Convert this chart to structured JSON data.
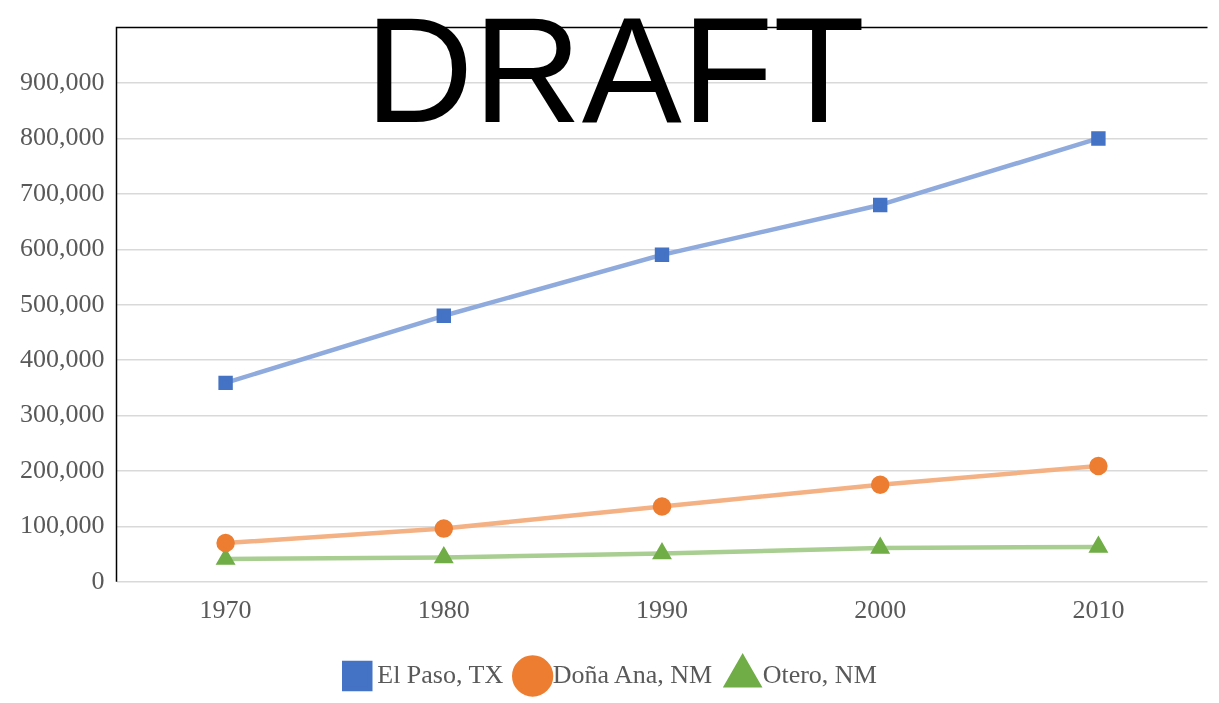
{
  "chart_data": {
    "type": "line",
    "categories": [
      "1970",
      "1980",
      "1990",
      "2000",
      "2010"
    ],
    "series": [
      {
        "name": "El Paso, TX",
        "color": "#4472c4",
        "marker": "square",
        "values": [
          359000,
          480000,
          590000,
          680000,
          800000
        ]
      },
      {
        "name": "Doña Ana, NM",
        "color": "#ed7d31",
        "marker": "circle",
        "values": [
          70000,
          96000,
          136000,
          175000,
          209000
        ]
      },
      {
        "name": "Otero, NM",
        "color": "#70ad47",
        "marker": "triangle",
        "values": [
          41000,
          44000,
          51000,
          61000,
          63000
        ]
      }
    ],
    "ylim": [
      0,
      1000000
    ],
    "yticks": [
      0,
      {
        "value": 100000,
        "label": "100,000"
      },
      {
        "value": 200000,
        "label": "200,000"
      },
      {
        "value": 300000,
        "label": "300,000"
      },
      {
        "value": 400000,
        "label": "400,000"
      },
      {
        "value": 500000,
        "label": "500,000"
      },
      {
        "value": 600000,
        "label": "600,000"
      },
      {
        "value": 700000,
        "label": "700,000"
      },
      {
        "value": 800000,
        "label": "800,000"
      },
      {
        "value": 900000,
        "label": "900,000"
      }
    ],
    "grid": "y",
    "legend": "bottom",
    "annotations": [
      "DRAFT"
    ]
  }
}
